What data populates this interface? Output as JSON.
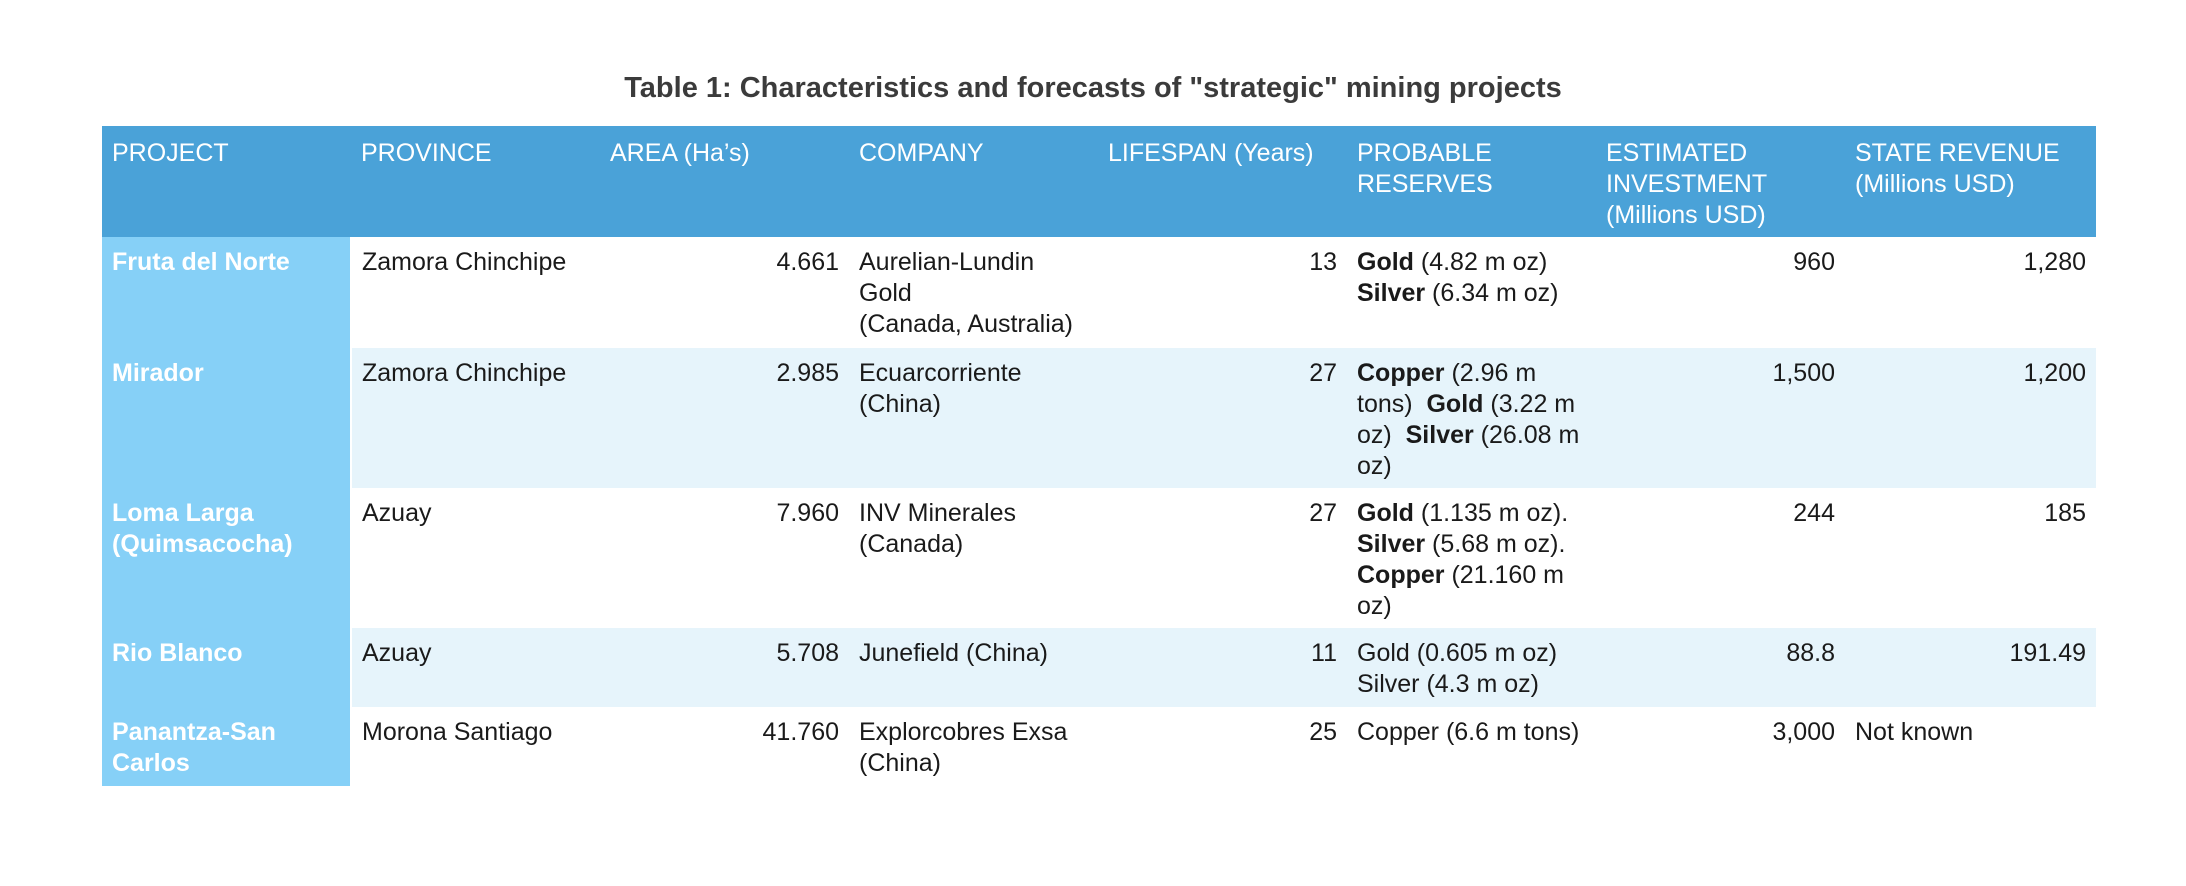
{
  "title": "Table 1: Characteristics and forecasts of \"strategic\" mining projects",
  "headers": {
    "project": "PROJECT",
    "province": "PROVINCE",
    "area": "AREA (Ha’s)",
    "company": "COMPANY",
    "lifespan": "LIFESPAN (Years)",
    "reserves_1": "PROBABLE",
    "reserves_2": "RESERVES",
    "investment_1": "ESTIMATED",
    "investment_2": "INVESTMENT",
    "investment_3": "(Millions USD)",
    "revenue_1": "STATE REVENUE",
    "revenue_2": "(Millions USD)"
  },
  "rows": [
    {
      "project": "Fruta del Norte",
      "province": "Zamora Chinchipe",
      "area": "4.661",
      "company_1": "Aurelian-Lundin Gold",
      "company_2": "(Canada, Australia)",
      "lifespan": "13",
      "reserves": [
        {
          "metal": "Gold",
          "amount": " (4.82 m oz)"
        },
        {
          "metal": "Silver",
          "amount": " (6.34 m oz)"
        }
      ],
      "investment": "960",
      "revenue": "1,280"
    },
    {
      "project": "Mirador",
      "province": "Zamora Chinchipe",
      "area": "2.985",
      "company_1": "Ecuarcorriente",
      "company_2": "(China)",
      "lifespan": "27",
      "reserves": [
        {
          "metal": "Copper",
          "amount": " (2.96 m tons)  "
        },
        {
          "metal": "Gold",
          "amount": " (3.22 m oz)  "
        },
        {
          "metal": "Silver",
          "amount": " (26.08 m oz)"
        }
      ],
      "investment": "1,500",
      "revenue": "1,200"
    },
    {
      "project": "Loma Larga (Quimsacocha)",
      "province": "Azuay",
      "area": "7.960",
      "company_1": "INV Minerales",
      "company_2": "(Canada)",
      "lifespan": "27",
      "reserves": [
        {
          "metal": "Gold",
          "amount": " (1.135 m oz)."
        },
        {
          "metal": "Silver",
          "amount": " (5.68 m oz)."
        },
        {
          "metal": "Copper",
          "amount": " (21.160 m oz)"
        }
      ],
      "investment": "244",
      "revenue": "185"
    },
    {
      "project": "Rio Blanco",
      "province": "Azuay",
      "area": "5.708",
      "company_1": "Junefield (China)",
      "company_2": "",
      "lifespan": "11",
      "reserves_plain": [
        "Gold (0.605 m oz)",
        "Silver (4.3 m oz)"
      ],
      "investment": "88.8",
      "revenue": "191.49"
    },
    {
      "project": "Panantza-San Carlos",
      "province": "Morona Santiago",
      "area": "41.760",
      "company_1": "Explorcobres Exsa",
      "company_2": "(China)",
      "lifespan": "25",
      "reserves_plain": [
        "Copper (6.6 m tons)"
      ],
      "investment": "3,000",
      "revenue": "Not known"
    }
  ]
}
